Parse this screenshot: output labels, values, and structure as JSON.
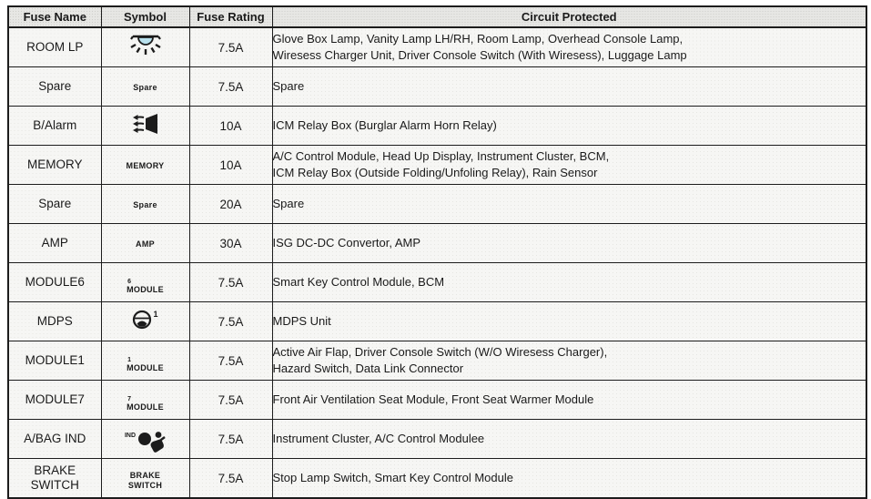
{
  "colors": {
    "border": "#1c1c1c",
    "text": "#1a1a1a",
    "header_background": "#e7e7e4",
    "cell_background": "#f6f6f4",
    "lamp_fill": "#b9e1ed"
  },
  "table": {
    "headers": [
      "Fuse Name",
      "Symbol",
      "Fuse Rating",
      "Circuit Protected"
    ],
    "rows": [
      {
        "name": "ROOM LP",
        "symbol": {
          "icon": "room-lamp-icon"
        },
        "rating": "7.5A",
        "circuit": "Glove Box Lamp, Vanity Lamp LH/RH, Room Lamp, Overhead Console Lamp,\nWiresess Charger Unit, Driver Console Switch (With Wiresess), Luggage Lamp"
      },
      {
        "name": "Spare",
        "symbol": {
          "text": "Spare"
        },
        "rating": "7.5A",
        "circuit": "Spare"
      },
      {
        "name": "B/Alarm",
        "symbol": {
          "icon": "horn-icon"
        },
        "rating": "10A",
        "circuit": "ICM Relay Box (Burglar Alarm Horn Relay)"
      },
      {
        "name": "MEMORY",
        "symbol": {
          "text": "MEMORY"
        },
        "rating": "10A",
        "circuit": "A/C Control Module, Head Up Display, Instrument Cluster, BCM,\nICM Relay Box (Outside Folding/Unfoling Relay), Rain Sensor"
      },
      {
        "name": "Spare",
        "symbol": {
          "text": "Spare"
        },
        "rating": "20A",
        "circuit": "Spare"
      },
      {
        "name": "AMP",
        "symbol": {
          "text": "AMP"
        },
        "rating": "30A",
        "circuit": "ISG DC-DC Convertor, AMP"
      },
      {
        "name": "MODULE6",
        "symbol": {
          "sup": "6",
          "text": "MODULE"
        },
        "rating": "7.5A",
        "circuit": "Smart Key Control Module, BCM"
      },
      {
        "name": "MDPS",
        "symbol": {
          "icon": "steering-wheel-icon",
          "sup_after": "1"
        },
        "rating": "7.5A",
        "circuit": "MDPS Unit"
      },
      {
        "name": "MODULE1",
        "symbol": {
          "sup": "1",
          "text": "MODULE"
        },
        "rating": "7.5A",
        "circuit": "Active Air Flap, Driver Console Switch (W/O Wiresess Charger),\nHazard Switch, Data Link Connector"
      },
      {
        "name": "MODULE7",
        "symbol": {
          "sup": "7",
          "text": "MODULE"
        },
        "rating": "7.5A",
        "circuit": "Front Air Ventilation Seat Module, Front Seat Warmer Module"
      },
      {
        "name": "A/BAG IND",
        "symbol": {
          "pre": "IND",
          "icon": "airbag-icon"
        },
        "rating": "7.5A",
        "circuit": "Instrument Cluster, A/C Control Modulee"
      },
      {
        "name": "BRAKE\nSWITCH",
        "symbol": {
          "text": "BRAKE\nSWITCH"
        },
        "rating": "7.5A",
        "circuit": "Stop Lamp Switch, Smart Key Control Module"
      }
    ]
  }
}
